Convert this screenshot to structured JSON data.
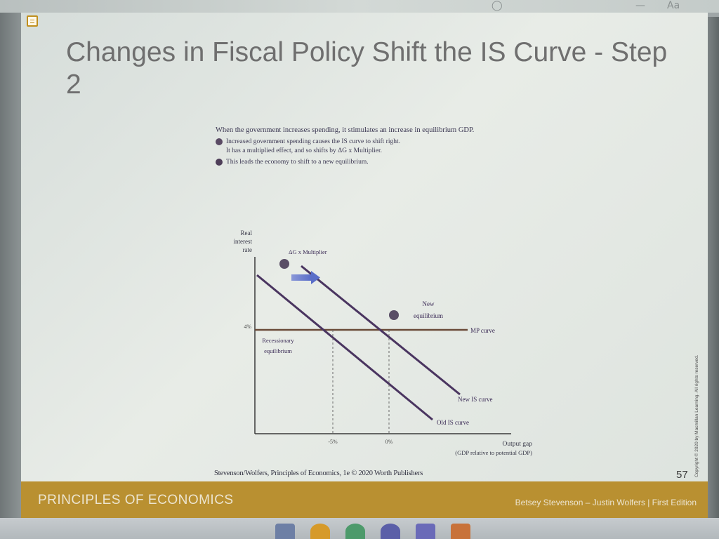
{
  "slide": {
    "title": "Changes in Fiscal Policy Shift the IS Curve - Step 2",
    "intro": "When the government increases spending, it stimulates an increase in equilibrium GDP.",
    "steps": [
      {
        "line1": "Increased government spending causes the IS curve to shift right.",
        "line2": "It has a multiplied effect, and so shifts by ΔG x Multiplier."
      },
      {
        "line1": "This leads the economy to shift to a new equilibrium."
      }
    ],
    "citation": "Stevenson/Wolfers, Principles of Economics, 1e © 2020 Worth Publishers",
    "page_number": "57",
    "copyright": "Copyright © 2020 by Macmillan Learning. All rights reserved.",
    "footer": {
      "book": "PRINCIPLES OF ECONOMICS",
      "authors": "Betsey Stevenson – Justin Wolfers | First Edition"
    }
  },
  "chart_data": {
    "type": "line",
    "ylabel": [
      "Real",
      "interest",
      "rate"
    ],
    "xlabel": "Output gap",
    "xlabel_sub": "(GDP relative to potential GDP)",
    "y_ticks": [
      "4%"
    ],
    "x_ticks": [
      "-5%",
      "0%"
    ],
    "series": [
      {
        "name": "Old IS curve"
      },
      {
        "name": "New IS curve"
      },
      {
        "name": "MP curve"
      }
    ],
    "annotations": {
      "shift": "ΔG x Multiplier",
      "new_eq": [
        "New",
        "equilibrium"
      ],
      "old_eq": [
        "Recessionary",
        "equilibrium"
      ]
    },
    "colors": {
      "is_curves": "#4a3560",
      "mp_curve": "#6a4a38",
      "arrow": "#5a6ec8",
      "axes": "#3a3a3a"
    }
  },
  "window": {
    "top_chrome": [
      "◯",
      "—",
      "Aa"
    ]
  }
}
